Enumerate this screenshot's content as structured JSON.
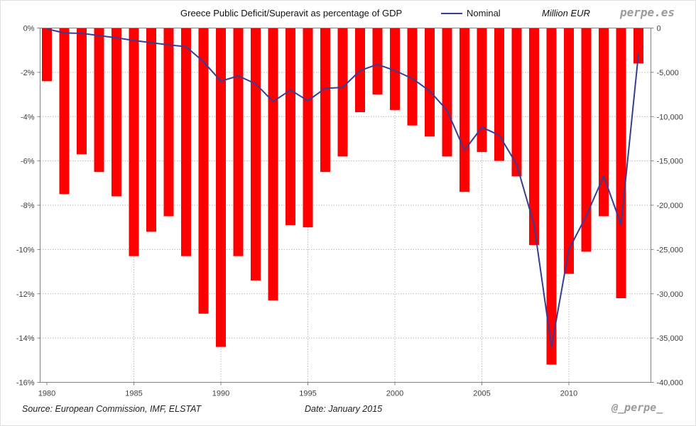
{
  "header": {
    "title": "Greece Public Deficit/Superavit as percentage of GDP",
    "legend_label": "Nominal",
    "right_axis_title": "Million EUR",
    "brand": "perpe.es"
  },
  "footer": {
    "source": "Source: European Commission, IMF, ELSTAT",
    "date": "Date: January 2015",
    "handle": "@_perpe_"
  },
  "colors": {
    "bar": "#fe0000",
    "line": "#3b3b96",
    "grid": "#b8b8b8",
    "border": "#808080",
    "tick_text": "#404040",
    "brand": "#9a9a9a"
  },
  "chart_data": {
    "type": "bar",
    "title": "Greece Public Deficit/Superavit as percentage of GDP",
    "x": [
      1980,
      1981,
      1982,
      1983,
      1984,
      1985,
      1986,
      1987,
      1988,
      1989,
      1990,
      1991,
      1992,
      1993,
      1994,
      1995,
      1996,
      1997,
      1998,
      1999,
      2000,
      2001,
      2002,
      2003,
      2004,
      2005,
      2006,
      2007,
      2008,
      2009,
      2010,
      2011,
      2012,
      2013,
      2014
    ],
    "series": [
      {
        "name": "Deficit/Superavit (% of GDP)",
        "type": "bar",
        "axis": "left",
        "values": [
          -2.4,
          -7.5,
          -5.7,
          -6.5,
          -7.6,
          -10.3,
          -9.2,
          -8.5,
          -10.3,
          -12.9,
          -14.4,
          -10.3,
          -11.4,
          -12.3,
          -8.9,
          -9.0,
          -6.5,
          -5.8,
          -3.8,
          -3.0,
          -3.7,
          -4.4,
          -4.9,
          -5.8,
          -7.4,
          -5.6,
          -6.0,
          -6.7,
          -9.8,
          -15.2,
          -11.1,
          -10.1,
          -8.5,
          -12.2,
          -1.6
        ]
      },
      {
        "name": "Nominal",
        "type": "line",
        "axis": "right",
        "values": [
          -100,
          -550,
          -600,
          -850,
          -1100,
          -1400,
          -1650,
          -1900,
          -2100,
          -3800,
          -6000,
          -5400,
          -6300,
          -8300,
          -7000,
          -8200,
          -6800,
          -6700,
          -4800,
          -4100,
          -4800,
          -5700,
          -7100,
          -9300,
          -13800,
          -11200,
          -12100,
          -15400,
          -22200,
          -36000,
          -25000,
          -21200,
          -16700,
          -22200,
          -2900
        ]
      }
    ],
    "left_axis": {
      "range": [
        -16,
        0
      ],
      "step": 2,
      "tick_labels": [
        "0%",
        "-2%",
        "-4%",
        "-6%",
        "-8%",
        "-10%",
        "-12%",
        "-14%",
        "-16%"
      ]
    },
    "right_axis": {
      "title": "Million EUR",
      "range": [
        -40000,
        0
      ],
      "step": 5000,
      "tick_labels": [
        "0",
        "-5,000",
        "-10,000",
        "-15,000",
        "-20,000",
        "-25,000",
        "-30,000",
        "-35,000",
        "-40,000"
      ]
    },
    "x_ticks": [
      1980,
      1985,
      1990,
      1995,
      2000,
      2005,
      2010
    ],
    "grid": "dotted",
    "legend_position": "top"
  }
}
